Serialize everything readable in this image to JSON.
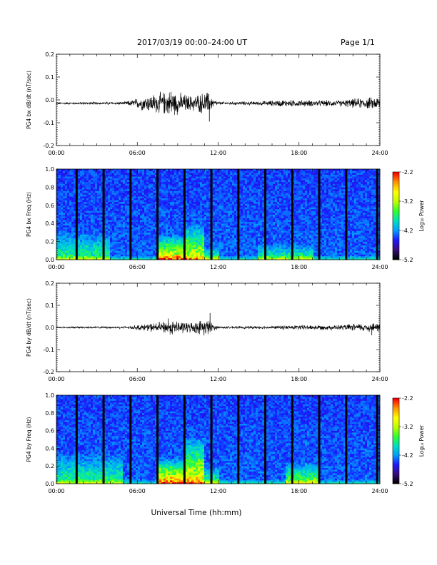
{
  "header": {
    "title": "2017/03/19  00:00–24:00 UT",
    "page": "Page 1/1"
  },
  "xaxis": {
    "tick_labels": [
      "00:00",
      "06:00",
      "12:00",
      "18:00",
      "24:00"
    ],
    "label": "Universal Time (hh:mm)"
  },
  "chart_data": [
    {
      "type": "line",
      "ylabel": "PG4 bx dB/dt (nT/sec)",
      "xlim": [
        0,
        24
      ],
      "ylim": [
        -0.2,
        0.2
      ],
      "yticks": [
        "-0.2",
        "-0.1",
        "0.0",
        "0.1",
        "0.2"
      ],
      "series": [
        {
          "baseline": -0.015
        }
      ],
      "activity": [
        {
          "t": 0,
          "amp": 0.004
        },
        {
          "t": 5,
          "amp": 0.006
        },
        {
          "t": 5.5,
          "amp": 0.012
        },
        {
          "t": 6.5,
          "amp": 0.03
        },
        {
          "t": 7.5,
          "amp": 0.04
        },
        {
          "t": 8.5,
          "amp": 0.05
        },
        {
          "t": 10,
          "amp": 0.03
        },
        {
          "t": 11.2,
          "amp": 0.045
        },
        {
          "t": 11.6,
          "amp": 0.02
        },
        {
          "t": 12,
          "amp": 0.006
        },
        {
          "t": 15,
          "amp": 0.008
        },
        {
          "t": 17,
          "amp": 0.014
        },
        {
          "t": 19,
          "amp": 0.012
        },
        {
          "t": 21,
          "amp": 0.012
        },
        {
          "t": 22.5,
          "amp": 0.02
        },
        {
          "t": 24,
          "amp": 0.025
        }
      ],
      "spikes": [
        {
          "t": 11.35,
          "value": -0.095
        },
        {
          "t": 8.5,
          "value": 0.035
        },
        {
          "t": 11.3,
          "value": 0.025
        }
      ]
    },
    {
      "type": "heatmap",
      "ylabel": "PG4 bx Freq (Hz)",
      "xlim": [
        0,
        24
      ],
      "ylim": [
        0,
        1.0
      ],
      "yticks": [
        "0.0",
        "0.2",
        "0.4",
        "0.6",
        "0.8",
        "1.0"
      ],
      "colorbar": {
        "label": "Log₁₀ Power",
        "range": [
          -5.2,
          -2.2
        ],
        "ticks": [
          "-2.2",
          "-3.2",
          "-4.2",
          "-5.2"
        ],
        "colors": [
          "#000000",
          "#3a0d7a",
          "#1a1aff",
          "#00a0ff",
          "#00e0c0",
          "#30ff30",
          "#c0ff00",
          "#ffff00",
          "#ff9900",
          "#ff0000"
        ]
      },
      "data_gaps_hours": [
        1.5,
        3.5,
        5.5,
        7.5,
        9.5,
        11.5,
        13.5,
        15.5,
        17.5,
        19.5,
        21.5,
        23.8
      ],
      "features": [
        {
          "t_start": 7.5,
          "t_end": 9.5,
          "f_max": 0.28,
          "intensity": 0.65
        },
        {
          "t_start": 9.5,
          "t_end": 11.0,
          "f_max": 0.42,
          "intensity": 0.55
        },
        {
          "t_start": 11.0,
          "t_end": 12.0,
          "f_max": 0.15,
          "intensity": 0.35
        },
        {
          "t_start": 0.0,
          "t_end": 4.0,
          "f_max": 0.32,
          "intensity": 0.3
        },
        {
          "t_start": 15.0,
          "t_end": 19.0,
          "f_max": 0.18,
          "intensity": 0.3
        }
      ]
    },
    {
      "type": "line",
      "ylabel": "PG4 by dB/dt (nT/sec)",
      "xlim": [
        0,
        24
      ],
      "ylim": [
        -0.2,
        0.2
      ],
      "yticks": [
        "-0.2",
        "-0.1",
        "0.0",
        "0.1",
        "0.2"
      ],
      "series": [
        {
          "baseline": 0.0
        }
      ],
      "activity": [
        {
          "t": 0,
          "amp": 0.003
        },
        {
          "t": 5,
          "amp": 0.005
        },
        {
          "t": 6,
          "amp": 0.01
        },
        {
          "t": 7.5,
          "amp": 0.02
        },
        {
          "t": 8.5,
          "amp": 0.03
        },
        {
          "t": 10,
          "amp": 0.02
        },
        {
          "t": 11.2,
          "amp": 0.035
        },
        {
          "t": 11.6,
          "amp": 0.015
        },
        {
          "t": 12,
          "amp": 0.005
        },
        {
          "t": 16,
          "amp": 0.006
        },
        {
          "t": 18,
          "amp": 0.01
        },
        {
          "t": 21,
          "amp": 0.01
        },
        {
          "t": 23,
          "amp": 0.018
        },
        {
          "t": 24,
          "amp": 0.02
        }
      ],
      "spikes": [
        {
          "t": 11.4,
          "value": 0.065
        },
        {
          "t": 8.3,
          "value": 0.04
        },
        {
          "t": 23.4,
          "value": -0.035
        }
      ]
    },
    {
      "type": "heatmap",
      "ylabel": "PG4 by Freq (Hz)",
      "xlim": [
        0,
        24
      ],
      "ylim": [
        0,
        1.0
      ],
      "yticks": [
        "0.0",
        "0.2",
        "0.4",
        "0.6",
        "0.8",
        "1.0"
      ],
      "colorbar": {
        "label": "Log₁₀ Power",
        "range": [
          -5.2,
          -2.2
        ],
        "ticks": [
          "-2.2",
          "-3.2",
          "-4.2",
          "-5.2"
        ],
        "colors": [
          "#000000",
          "#3a0d7a",
          "#1a1aff",
          "#00a0ff",
          "#00e0c0",
          "#30ff30",
          "#c0ff00",
          "#ffff00",
          "#ff9900",
          "#ff0000"
        ]
      },
      "data_gaps_hours": [
        1.5,
        3.5,
        5.5,
        7.5,
        9.5,
        11.5,
        13.5,
        15.5,
        17.5,
        19.5,
        21.5,
        23.8
      ],
      "features": [
        {
          "t_start": 7.5,
          "t_end": 9.5,
          "f_max": 0.3,
          "intensity": 0.7
        },
        {
          "t_start": 9.5,
          "t_end": 11.0,
          "f_max": 0.55,
          "intensity": 0.6
        },
        {
          "t_start": 11.0,
          "t_end": 12.0,
          "f_max": 0.2,
          "intensity": 0.35
        },
        {
          "t_start": 0.0,
          "t_end": 5.0,
          "f_max": 0.35,
          "intensity": 0.3
        },
        {
          "t_start": 17.0,
          "t_end": 19.5,
          "f_max": 0.25,
          "intensity": 0.4
        }
      ]
    }
  ]
}
